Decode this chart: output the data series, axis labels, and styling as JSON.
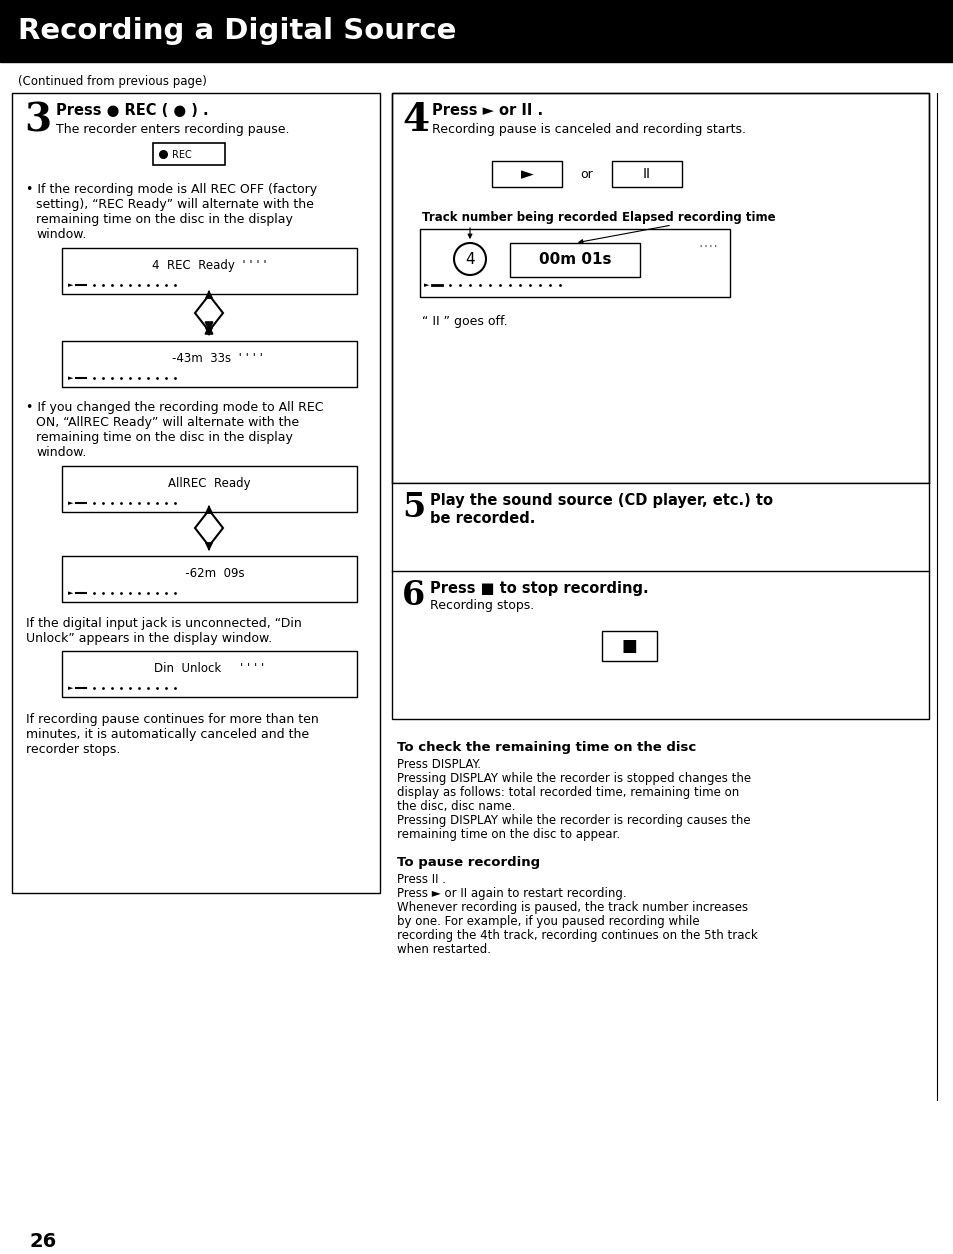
{
  "title": "Recording a Digital Source",
  "title_bg": "#000000",
  "title_color": "#ffffff",
  "page_bg": "#ffffff",
  "page_number": "26",
  "continued_text": "(Continued from previous page)"
}
